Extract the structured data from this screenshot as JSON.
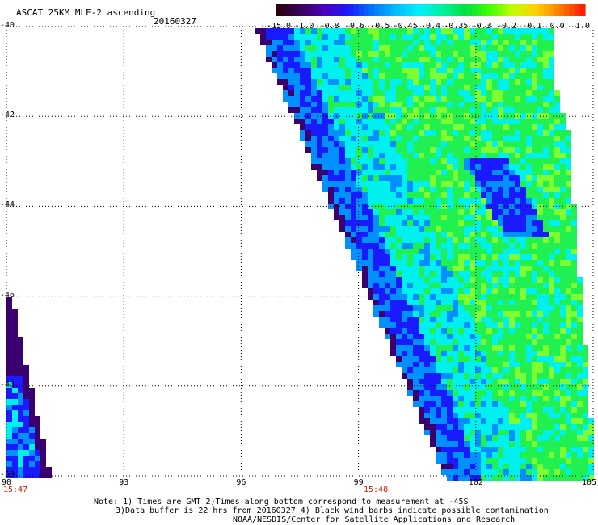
{
  "header": {
    "title": "ASCAT 25KM MLE-2 ascending",
    "date": "20160327"
  },
  "colorbar": {
    "labels": [
      "-15.0",
      "-1.0",
      "-0.8",
      "-0.6",
      "-0.5",
      "-0.45",
      "-0.4",
      "-0.35",
      "-0.3",
      "-0.2",
      "-0.1",
      "0.0",
      "1.0"
    ],
    "colors": [
      "#2a0012",
      "#3a0060",
      "#4a00c0",
      "#1a1aff",
      "#0077ff",
      "#00bbff",
      "#00f0ff",
      "#00f0a0",
      "#00e040",
      "#40ff00",
      "#c0ff00",
      "#ffd000",
      "#ff8000",
      "#ff2000"
    ]
  },
  "axes": {
    "lat_labels": [
      "-40",
      "-42",
      "-44",
      "-46",
      "-48",
      "-50"
    ],
    "lon_labels": [
      "90",
      "93",
      "96",
      "99",
      "102",
      "105"
    ],
    "lon_min": 90,
    "lon_max": 105,
    "lat_min": -50,
    "lat_max": -40
  },
  "time_labels": [
    "15:47",
    "15:48"
  ],
  "notes": {
    "line1": "Note: 1) Times are GMT 2)Times along bottom correspond to measurement at -45S",
    "line2": "3)Data buffer is 22 hrs from 20160327 4) Black wind barbs indicate possible contamination",
    "line3": "NOAA/NESDIS/Center for Satellite Applications and Research"
  },
  "palette": {
    "deep_purple": "#3a0070",
    "blue": "#1a1aff",
    "light_blue": "#0090ff",
    "cyan": "#00f0f0",
    "green": "#20f050",
    "lime": "#80ff30"
  }
}
